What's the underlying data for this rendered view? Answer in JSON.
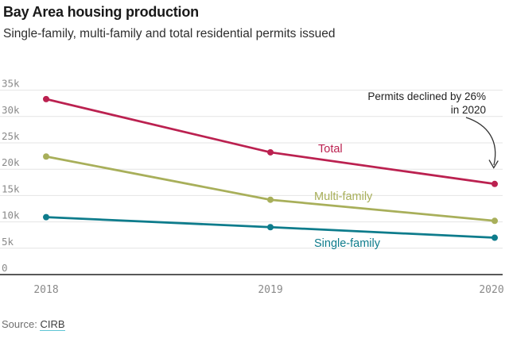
{
  "header": {
    "title": "Bay Area housing production",
    "subtitle": "Single-family, multi-family and total residential permits issued"
  },
  "chart_data": {
    "type": "line",
    "title": "Bay Area housing production",
    "subtitle": "Single-family, multi-family and total residential permits issued",
    "x": [
      "2018",
      "2019",
      "2020"
    ],
    "series": [
      {
        "name": "Total",
        "color": "#bb2150",
        "values": [
          33300,
          23200,
          17200
        ]
      },
      {
        "name": "Multi-family",
        "color": "#a8af5a",
        "values": [
          22400,
          14200,
          10200
        ]
      },
      {
        "name": "Single-family",
        "color": "#0e7c8c",
        "values": [
          10900,
          9000,
          7000
        ]
      }
    ],
    "ylim": [
      0,
      35000
    ],
    "y_ticks": [
      {
        "value": 0,
        "label": "0"
      },
      {
        "value": 5000,
        "label": "5k"
      },
      {
        "value": 10000,
        "label": "10k"
      },
      {
        "value": 15000,
        "label": "15k"
      },
      {
        "value": 20000,
        "label": "20k"
      },
      {
        "value": 25000,
        "label": "25k"
      },
      {
        "value": 30000,
        "label": "30k"
      },
      {
        "value": 35000,
        "label": "35k"
      }
    ],
    "grid": "horizontal",
    "legend_position": "inline-labels",
    "annotation": {
      "line1": "Permits declined by 26%",
      "line2": "in 2020"
    },
    "axis_color": "#222222",
    "gridline_color": "#e4e4e4",
    "tick_label_color": "#8a8a8a"
  },
  "footer": {
    "source_label": "Source:",
    "source_link": "CIRB"
  }
}
